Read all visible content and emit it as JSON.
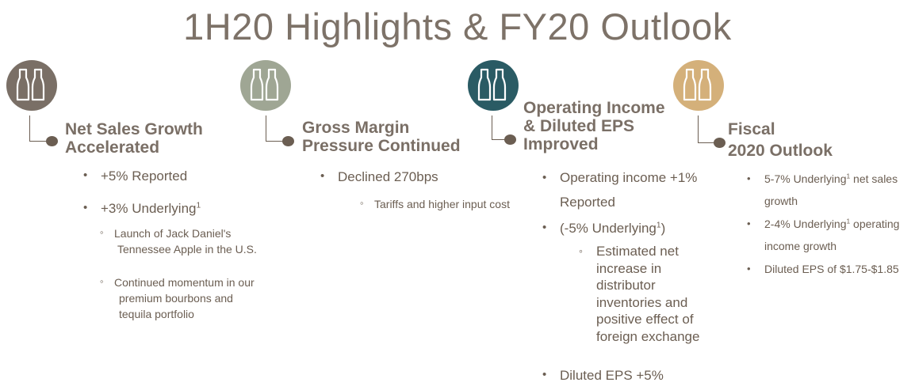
{
  "title": "1H20 Highlights & FY20 Outlook",
  "colors": {
    "col1_icon": "#7a6f66",
    "col2_icon": "#9fa694",
    "col3_icon": "#2a5b64",
    "col4_icon": "#d4b07a",
    "text": "#6b5e52"
  },
  "col1": {
    "icon": "bottles-icon",
    "heading_line1": "Net Sales Growth",
    "heading_line2": "Accelerated",
    "b1": "+5% Reported",
    "b2_text": "+3% Underlying",
    "b2_sup": "1",
    "s1_line1": "Launch of Jack Daniel's",
    "s1_line2": "Tennessee Apple in the U.S.",
    "s2_line1": "Continued momentum in our",
    "s2_line2": "premium bourbons and",
    "s2_line3": "tequila portfolio"
  },
  "col2": {
    "icon": "bottles-icon",
    "heading_line1": "Gross Margin",
    "heading_line2": "Pressure Continued",
    "b1": "Declined 270bps",
    "s1": "Tariffs and higher input cost"
  },
  "col3": {
    "icon": "bottles-icon",
    "heading_line1": "Operating Income",
    "heading_line2": "& Diluted EPS",
    "heading_line3": "Improved",
    "b1_line1": "Operating income +1%",
    "b1_line2": "Reported",
    "b1_line3_pre": "(-5% Underlying",
    "b1_line3_sup": "1",
    "b1_line3_post": ")",
    "s1_line1": "Estimated net",
    "s1_line2": "increase in",
    "s1_line3": "distributor",
    "s1_line4": "inventories and",
    "s1_line5": "positive effect of",
    "s1_line6": "foreign exchange",
    "b2": "Diluted EPS +5%"
  },
  "col4": {
    "icon": "bottles-icon",
    "heading_line1": "Fiscal",
    "heading_line2": "2020 Outlook",
    "i1_pre": "5-7% Underlying",
    "i1_sup": "1",
    "i1_post": " net sales",
    "i1_line2": "growth",
    "i2_pre": "2-4% Underlying",
    "i2_sup": "1",
    "i2_post": " operating",
    "i2_line2": "income growth",
    "i3": "Diluted EPS of $1.75-$1.85"
  }
}
